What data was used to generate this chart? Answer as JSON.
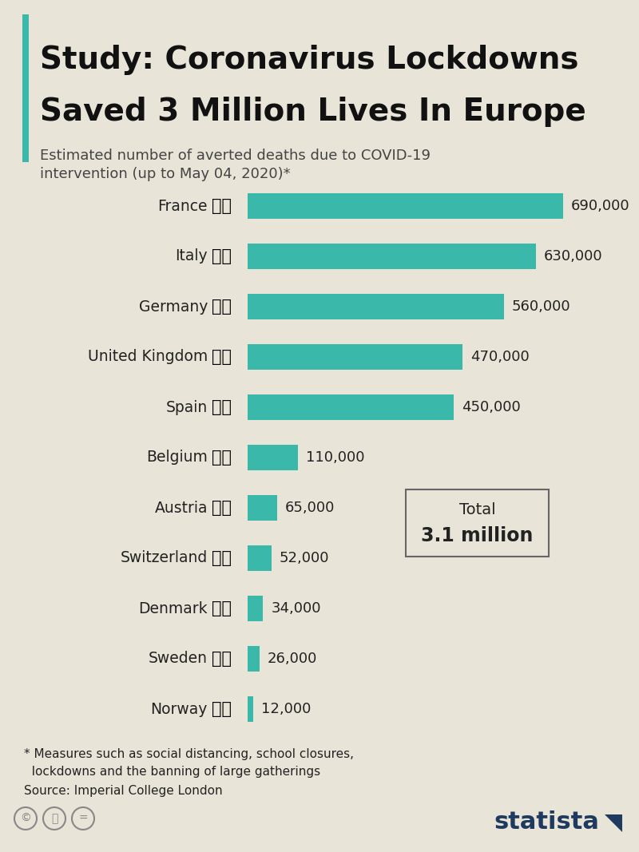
{
  "title_line1": "Study: Coronavirus Lockdowns",
  "title_line2": "Saved 3 Million Lives In Europe",
  "subtitle_line1": "Estimated number of averted deaths due to COVID-19",
  "subtitle_line2": "intervention (up to May 04, 2020)*",
  "countries": [
    "France",
    "Italy",
    "Germany",
    "United Kingdom",
    "Spain",
    "Belgium",
    "Austria",
    "Switzerland",
    "Denmark",
    "Sweden",
    "Norway"
  ],
  "values": [
    690000,
    630000,
    560000,
    470000,
    450000,
    110000,
    65000,
    52000,
    34000,
    26000,
    12000
  ],
  "value_labels": [
    "690,000",
    "630,000",
    "560,000",
    "470,000",
    "450,000",
    "110,000",
    "65,000",
    "52,000",
    "34,000",
    "26,000",
    "12,000"
  ],
  "bar_color": "#3ab8aa",
  "background_color": "#e8e4d8",
  "title_color": "#111111",
  "subtitle_color": "#444444",
  "text_color": "#222222",
  "accent_color": "#3ab8aa",
  "footnote_line1": "* Measures such as social distancing, school closures,",
  "footnote_line2": "  lockdowns and the banning of large gatherings",
  "footnote_line3": "Source: Imperial College London",
  "flag_emojis": [
    "🇫🇷",
    "🇮🇹",
    "🇩🇪",
    "🇬🇧",
    "🇪🇸",
    "🇧🇪",
    "🇦🇹",
    "🇨🇭",
    "🇩🇰",
    "🇸🇪",
    "🇳🇴"
  ]
}
